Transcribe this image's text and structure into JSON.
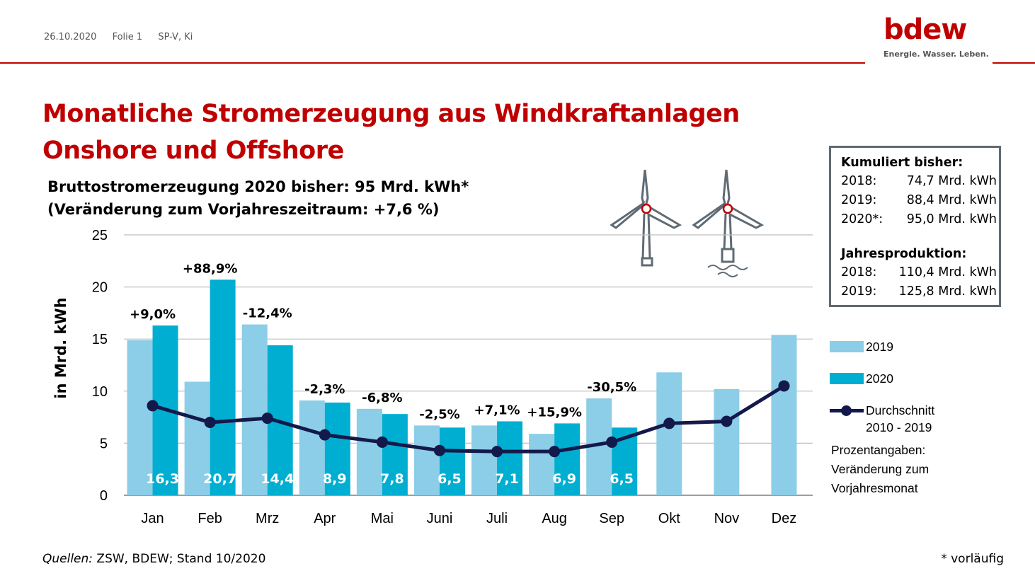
{
  "header": {
    "date": "26.10.2020",
    "slide": "Folie 1",
    "author": "SP-V, Ki"
  },
  "logo": {
    "word": "bdew",
    "tagline": "Energie. Wasser. Leben."
  },
  "title_line1": "Monatliche Stromerzeugung aus Windkraftanlagen",
  "title_line2": "Onshore und Offshore",
  "subtitle_line1": "Bruttostromerzeugung 2020 bisher: 95 Mrd. kWh*",
  "subtitle_line2": "(Veränderung zum Vorjahreszeitraum: +7,6 %)",
  "infobox": {
    "heading1": "Kumuliert bisher:",
    "cumulative": [
      {
        "year": "2018:",
        "value": "74,7 Mrd. kWh"
      },
      {
        "year": "2019:",
        "value": "88,4 Mrd. kWh"
      },
      {
        "year": "2020*:",
        "value": "95,0 Mrd. kWh"
      }
    ],
    "heading2": "Jahresproduktion:",
    "annual": [
      {
        "year": "2018:",
        "value": "110,4 Mrd. kWh"
      },
      {
        "year": "2019:",
        "value": "125,8 Mrd. kWh"
      }
    ]
  },
  "legend": {
    "s2019": "2019",
    "s2020": "2020",
    "avg_line1": "Durchschnitt",
    "avg_line2": "2010 - 2019"
  },
  "note": "Prozentangaben:\nVeränderung zum\nVorjahresmonat",
  "source_label": "Quellen:",
  "source_text": " ZSW, BDEW; Stand 10/2020",
  "footnote": "* vorläufig",
  "colors": {
    "s2019": "#8ccde8",
    "s2020": "#00aed1",
    "avg": "#13194a",
    "accent": "#c00000",
    "grid": "#bfbfbf"
  },
  "chart_data": {
    "type": "bar",
    "categories": [
      "Jan",
      "Feb",
      "Mrz",
      "Apr",
      "Mai",
      "Juni",
      "Juli",
      "Aug",
      "Sep",
      "Okt",
      "Nov",
      "Dez"
    ],
    "ylabel": "in Mrd. kWh",
    "ylim": [
      0,
      25
    ],
    "yticks": [
      0,
      5,
      10,
      15,
      20,
      25
    ],
    "grid": true,
    "legend_position": "right",
    "series": [
      {
        "name": "2019",
        "type": "bar",
        "values": [
          14.9,
          10.9,
          16.4,
          9.1,
          8.3,
          6.7,
          6.7,
          5.9,
          9.3,
          11.8,
          10.2,
          15.4
        ]
      },
      {
        "name": "2020",
        "type": "bar",
        "values": [
          16.3,
          20.7,
          14.4,
          8.9,
          7.8,
          6.5,
          7.1,
          6.9,
          6.5,
          null,
          null,
          null
        ],
        "data_labels": [
          "16,3",
          "20,7",
          "14,4",
          "8,9",
          "7,8",
          "6,5",
          "7,1",
          "6,9",
          "6,5"
        ]
      },
      {
        "name": "Durchschnitt 2010 - 2019",
        "type": "line",
        "values": [
          8.6,
          7.0,
          7.4,
          5.8,
          5.1,
          4.3,
          4.2,
          4.2,
          5.1,
          6.9,
          7.1,
          10.5
        ]
      }
    ],
    "change_labels": [
      "+9,0%",
      "+88,9%",
      "-12,4%",
      "-2,3%",
      "-6,8%",
      "-2,5%",
      "+7,1%",
      "+15,9%",
      "-30,5%"
    ]
  }
}
